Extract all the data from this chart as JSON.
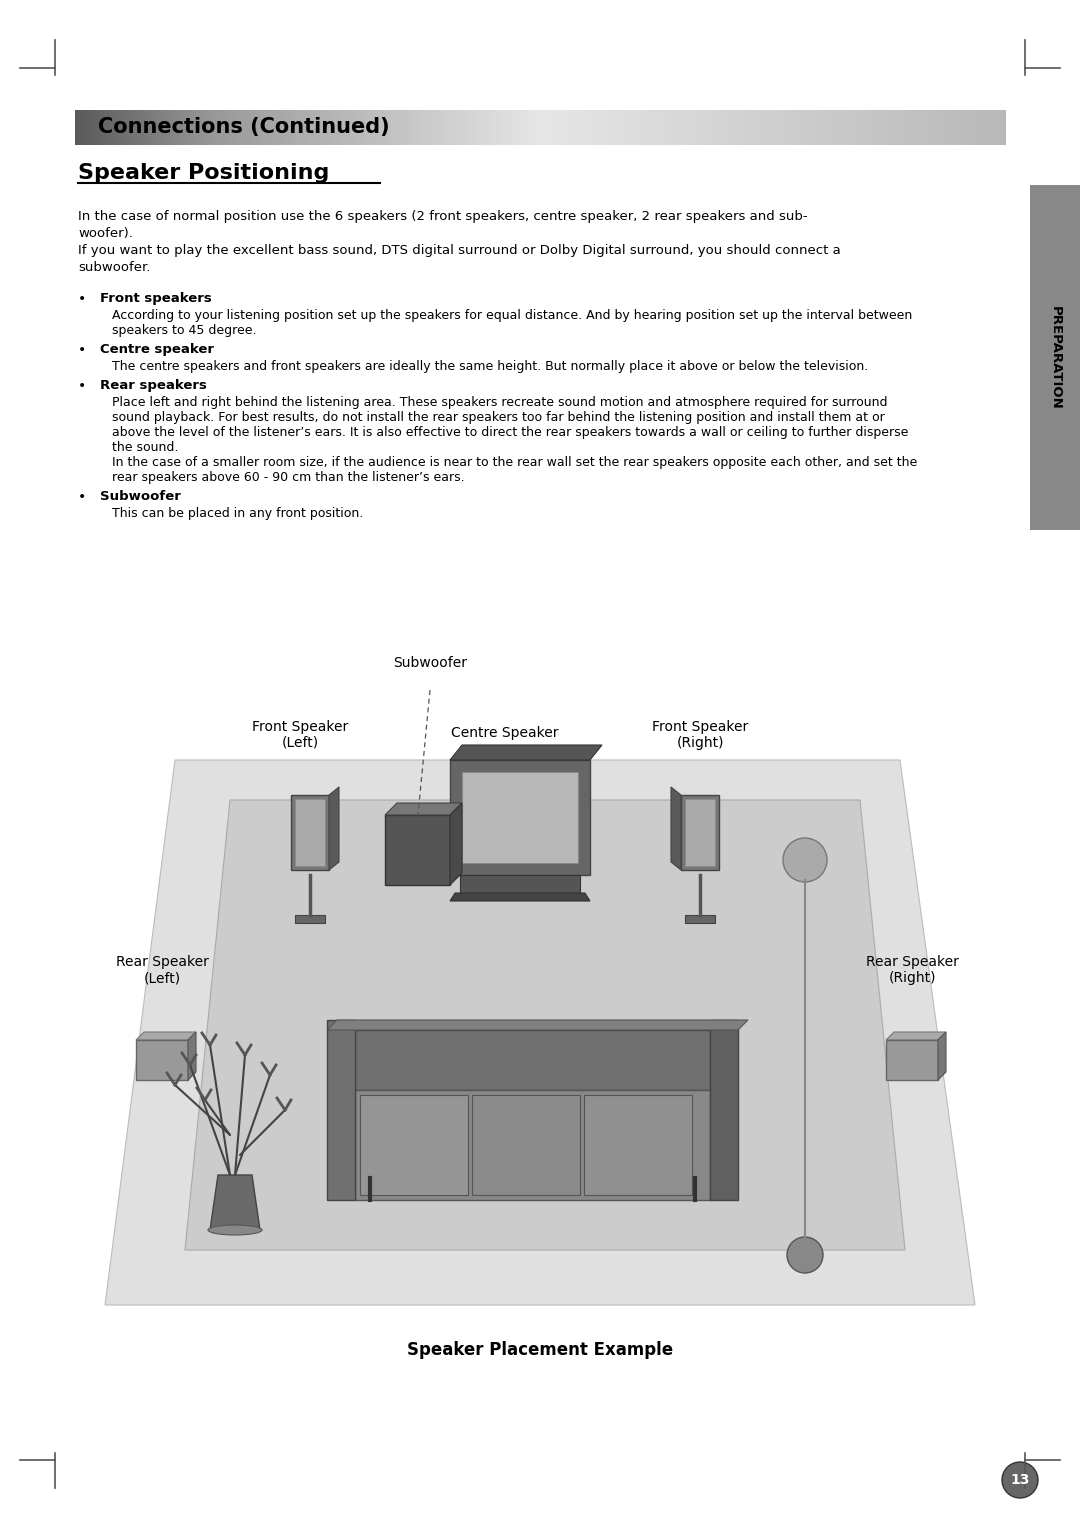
{
  "title_bar_text": "Connections (Continued)",
  "section_title": "Speaker Positioning",
  "para1_lines": [
    "In the case of normal position use the 6 speakers (2 front speakers, centre speaker, 2 rear speakers and sub-",
    "woofer).",
    "If you want to play the excellent bass sound, DTS digital surround or Dolby Digital surround, you should connect a",
    "subwoofer."
  ],
  "bullet_items": [
    {
      "label": "Front speakers",
      "text": [
        "According to your listening position set up the speakers for equal distance. And by hearing position set up the interval between",
        "speakers to 45 degree."
      ]
    },
    {
      "label": "Centre speaker",
      "text": [
        "The centre speakers and front speakers are ideally the same height. But normally place it above or below the television."
      ]
    },
    {
      "label": "Rear speakers",
      "text": [
        "Place left and right behind the listening area. These speakers recreate sound motion and atmosphere required for surround",
        "sound playback. For best results, do not install the rear speakers too far behind the listening position and install them at or",
        "above the level of the listener’s ears. It is also effective to direct the rear speakers towards a wall or ceiling to further disperse",
        "the sound.",
        "In the case of a smaller room size, if the audience is near to the rear wall set the rear speakers opposite each other, and set the",
        "rear speakers above 60 - 90 cm than the listener’s ears."
      ]
    },
    {
      "label": "Subwoofer",
      "text": [
        "This can be placed in any front position."
      ]
    }
  ],
  "diagram_caption": "Speaker Placement Example",
  "labels": {
    "subwoofer": "Subwoofer",
    "front_left": "Front Speaker\n(Left)",
    "centre": "Centre Speaker",
    "front_right": "Front Speaker\n(Right)",
    "rear_left": "Rear Speaker\n(Left)",
    "rear_right": "Rear Speaker\n(Right)"
  },
  "side_tab_text": "PREPARATION",
  "page_number": "13"
}
